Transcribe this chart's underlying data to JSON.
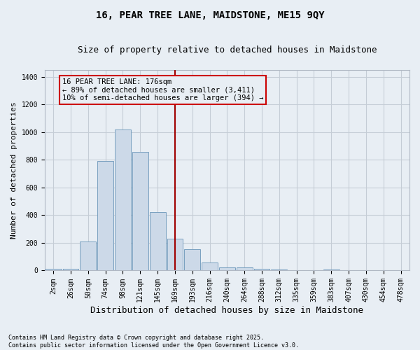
{
  "title": "16, PEAR TREE LANE, MAIDSTONE, ME15 9QY",
  "subtitle": "Size of property relative to detached houses in Maidstone",
  "xlabel": "Distribution of detached houses by size in Maidstone",
  "ylabel": "Number of detached properties",
  "footnote1": "Contains HM Land Registry data © Crown copyright and database right 2025.",
  "footnote2": "Contains public sector information licensed under the Open Government Licence v3.0.",
  "annotation_line1": "16 PEAR TREE LANE: 176sqm",
  "annotation_line2": "← 89% of detached houses are smaller (3,411)",
  "annotation_line3": "10% of semi-detached houses are larger (394) →",
  "bar_color": "#ccd9e8",
  "bar_edge_color": "#7aa0c0",
  "vline_color": "#a00000",
  "annotation_box_edge_color": "#cc0000",
  "background_color": "#e8eef4",
  "plot_bg_color": "#e8eef4",
  "grid_color": "#c5cdd6",
  "categories": [
    "2sqm",
    "26sqm",
    "50sqm",
    "74sqm",
    "98sqm",
    "121sqm",
    "145sqm",
    "169sqm",
    "193sqm",
    "216sqm",
    "240sqm",
    "264sqm",
    "288sqm",
    "312sqm",
    "335sqm",
    "359sqm",
    "383sqm",
    "407sqm",
    "430sqm",
    "454sqm",
    "478sqm"
  ],
  "values": [
    15,
    15,
    210,
    790,
    1020,
    860,
    420,
    230,
    155,
    60,
    25,
    25,
    15,
    5,
    0,
    0,
    5,
    0,
    0,
    0,
    0
  ],
  "ylim": [
    0,
    1450
  ],
  "yticks": [
    0,
    200,
    400,
    600,
    800,
    1000,
    1200,
    1400
  ],
  "vline_x_index": 7,
  "title_fontsize": 10,
  "subtitle_fontsize": 9,
  "tick_fontsize": 7,
  "ylabel_fontsize": 8,
  "xlabel_fontsize": 9,
  "footnote_fontsize": 6
}
